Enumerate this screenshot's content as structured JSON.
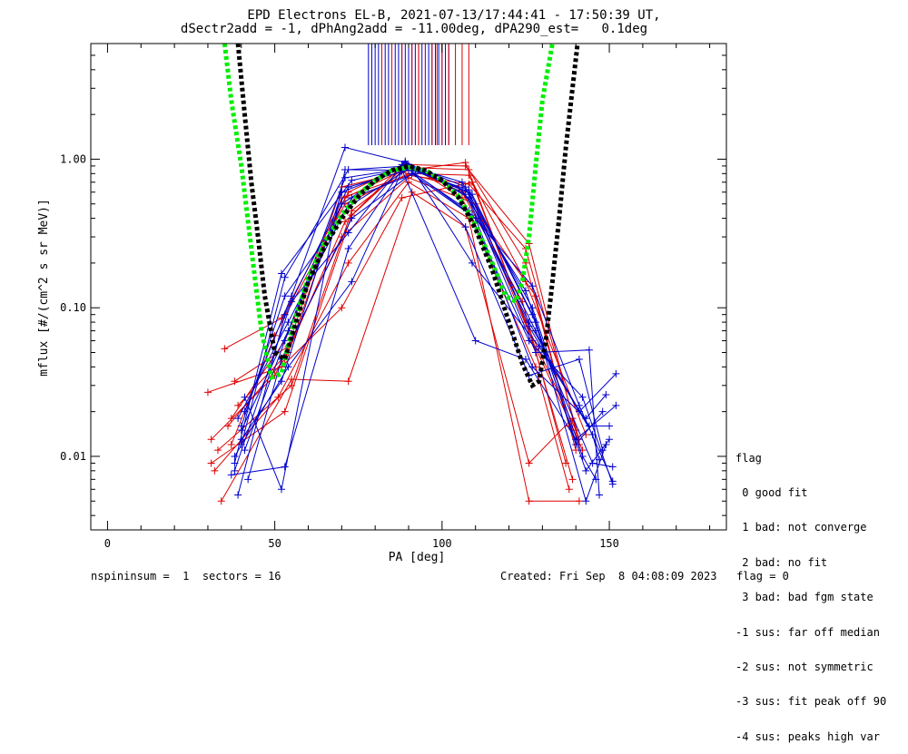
{
  "title_line1": "EPD Electrons EL-B, 2021-07-13/17:44:41 - 17:50:39 UT,",
  "title_line2": "dSectr2add = -1, dPhAng2add = -11.00deg, dPA290_est=   0.1deg",
  "chart_data": {
    "type": "line",
    "xlabel": "PA [deg]",
    "ylabel": "mflux [#/(cm^2 s sr MeV)]",
    "xlim": [
      -5,
      185
    ],
    "ylim": [
      0.0032,
      6.0
    ],
    "yscale": "log",
    "xticks": [
      0,
      50,
      100,
      150
    ],
    "xtick_labels": [
      "0",
      "50",
      "100",
      "150"
    ],
    "yticks": [
      0.01,
      0.1,
      1.0
    ],
    "ytick_labels": [
      "0.01",
      "0.10",
      "1.00"
    ],
    "grid": false,
    "series": [
      {
        "color": "#dd0000",
        "x": [
          37,
          53,
          71,
          90,
          108,
          125,
          140
        ],
        "y": [
          0.018,
          0.06,
          0.55,
          0.88,
          0.85,
          0.2,
          0.011
        ]
      },
      {
        "color": "#dd0000",
        "x": [
          35,
          52,
          72,
          89,
          107,
          126,
          141
        ],
        "y": [
          0.053,
          0.085,
          0.6,
          0.92,
          0.9,
          0.27,
          0.012
        ]
      },
      {
        "color": "#dd0000",
        "x": [
          31,
          50,
          70,
          90,
          110,
          127,
          139
        ],
        "y": [
          0.013,
          0.035,
          0.3,
          0.75,
          0.5,
          0.06,
          0.007
        ]
      },
      {
        "color": "#dd0000",
        "x": [
          33,
          55,
          73,
          88,
          105,
          128,
          138
        ],
        "y": [
          0.011,
          0.03,
          0.45,
          0.82,
          0.65,
          0.12,
          0.016
        ]
      },
      {
        "color": "#dd0000",
        "x": [
          38,
          54,
          70,
          91,
          107,
          125,
          140
        ],
        "y": [
          0.032,
          0.055,
          0.65,
          0.85,
          0.95,
          0.08,
          0.015
        ]
      },
      {
        "color": "#dd0000",
        "x": [
          32,
          51,
          72,
          90,
          108,
          126,
          141
        ],
        "y": [
          0.008,
          0.025,
          0.2,
          0.7,
          0.4,
          0.005,
          0.005
        ]
      },
      {
        "color": "#dd0000",
        "x": [
          36,
          53,
          71,
          89,
          106,
          124,
          137
        ],
        "y": [
          0.016,
          0.045,
          0.38,
          0.9,
          0.6,
          0.11,
          0.009
        ]
      },
      {
        "color": "#dd0000",
        "x": [
          30,
          52,
          70,
          88,
          109,
          127,
          142
        ],
        "y": [
          0.027,
          0.04,
          0.1,
          0.55,
          0.7,
          0.06,
          0.011
        ]
      },
      {
        "color": "#dd0000",
        "x": [
          34,
          55,
          72,
          91,
          107,
          126,
          139
        ],
        "y": [
          0.005,
          0.033,
          0.032,
          0.6,
          0.35,
          0.009,
          0.018
        ]
      },
      {
        "color": "#dd0000",
        "x": [
          37,
          50,
          71,
          90,
          108,
          125,
          143
        ],
        "y": [
          0.012,
          0.065,
          0.5,
          0.8,
          0.78,
          0.15,
          0.014
        ]
      },
      {
        "color": "#dd0000",
        "x": [
          31,
          53,
          73,
          89,
          106,
          128,
          138
        ],
        "y": [
          0.009,
          0.02,
          0.42,
          0.95,
          0.55,
          0.04,
          0.006
        ]
      },
      {
        "color": "#dd0000",
        "x": [
          39,
          54,
          70,
          90,
          108,
          125,
          141
        ],
        "y": [
          0.022,
          0.05,
          0.55,
          0.78,
          0.68,
          0.25,
          0.013
        ]
      },
      {
        "color": "#0000cc",
        "x": [
          40,
          53,
          72,
          90,
          108,
          126,
          141,
          152
        ],
        "y": [
          0.012,
          0.16,
          0.85,
          0.9,
          0.6,
          0.075,
          0.02,
          0.036
        ]
      },
      {
        "color": "#0000cc",
        "x": [
          38,
          52,
          73,
          91,
          109,
          127,
          143,
          150
        ],
        "y": [
          0.009,
          0.17,
          0.72,
          0.88,
          0.58,
          0.09,
          0.008,
          0.013
        ]
      },
      {
        "color": "#0000cc",
        "x": [
          41,
          55,
          71,
          89,
          107,
          128,
          144,
          147
        ],
        "y": [
          0.02,
          0.12,
          1.2,
          0.95,
          0.65,
          0.05,
          0.052,
          0.0055
        ]
      },
      {
        "color": "#0000cc",
        "x": [
          39,
          53,
          72,
          90,
          108,
          126,
          142,
          151
        ],
        "y": [
          0.0055,
          0.09,
          0.65,
          0.85,
          0.45,
          0.06,
          0.025,
          0.0065
        ]
      },
      {
        "color": "#0000cc",
        "x": [
          40,
          54,
          70,
          88,
          106,
          125,
          140,
          148
        ],
        "y": [
          0.015,
          0.07,
          0.5,
          0.92,
          0.62,
          0.13,
          0.012,
          0.02
        ]
      },
      {
        "color": "#0000cc",
        "x": [
          42,
          52,
          73,
          91,
          110,
          127,
          143,
          149
        ],
        "y": [
          0.007,
          0.045,
          0.4,
          0.8,
          0.4,
          0.04,
          0.018,
          0.026
        ]
      },
      {
        "color": "#0000cc",
        "x": [
          38,
          55,
          72,
          89,
          108,
          128,
          145,
          151
        ],
        "y": [
          0.008,
          0.11,
          0.32,
          0.97,
          0.55,
          0.07,
          0.009,
          0.0085
        ]
      },
      {
        "color": "#0000cc",
        "x": [
          41,
          53,
          71,
          90,
          107,
          126,
          141,
          148
        ],
        "y": [
          0.011,
          0.06,
          0.75,
          0.87,
          0.35,
          0.035,
          0.045,
          0.011
        ]
      },
      {
        "color": "#0000cc",
        "x": [
          39,
          54,
          73,
          92,
          109,
          129,
          144,
          150
        ],
        "y": [
          0.018,
          0.08,
          0.55,
          0.8,
          0.2,
          0.055,
          0.016,
          0.016
        ]
      },
      {
        "color": "#0000cc",
        "x": [
          40,
          52,
          70,
          90,
          106,
          127,
          142,
          146
        ],
        "y": [
          0.013,
          0.032,
          0.6,
          0.9,
          0.7,
          0.1,
          0.01,
          0.007
        ]
      },
      {
        "color": "#0000cc",
        "x": [
          37,
          53,
          72,
          88,
          110,
          125,
          140,
          152
        ],
        "y": [
          0.0075,
          0.0085,
          0.25,
          0.85,
          0.06,
          0.045,
          0.013,
          0.022
        ]
      },
      {
        "color": "#0000cc",
        "x": [
          41,
          52,
          71,
          91,
          108,
          128,
          143,
          149
        ],
        "y": [
          0.025,
          0.006,
          0.85,
          0.84,
          0.62,
          0.08,
          0.005,
          0.012
        ]
      },
      {
        "color": "#0000cc",
        "x": [
          38,
          54,
          73,
          89,
          107,
          126,
          145,
          147
        ],
        "y": [
          0.01,
          0.04,
          0.15,
          0.93,
          0.58,
          0.08,
          0.014,
          0.0095
        ]
      },
      {
        "color": "#0000cc",
        "x": [
          40,
          53,
          72,
          90,
          109,
          127,
          141,
          151
        ],
        "y": [
          0.016,
          0.12,
          0.48,
          0.86,
          0.42,
          0.14,
          0.022,
          0.0068
        ]
      }
    ],
    "model_curves": [
      {
        "color": "#00ee00",
        "style": "dashed",
        "x": [
          35,
          37,
          40,
          43,
          46,
          49,
          52,
          55,
          60,
          65,
          70,
          75,
          80,
          85,
          90,
          95,
          100,
          105,
          110,
          115,
          119,
          122,
          124,
          126,
          128,
          130,
          133
        ],
        "y": [
          6.0,
          2.5,
          0.9,
          0.25,
          0.07,
          0.034,
          0.036,
          0.07,
          0.16,
          0.28,
          0.42,
          0.58,
          0.72,
          0.84,
          0.88,
          0.84,
          0.72,
          0.56,
          0.36,
          0.2,
          0.12,
          0.11,
          0.15,
          0.3,
          0.9,
          2.5,
          6.0
        ]
      },
      {
        "color": "#000000",
        "style": "dashed",
        "x": [
          39,
          41,
          43,
          45,
          47,
          50,
          53,
          56,
          60,
          65,
          70,
          75,
          80,
          85,
          90,
          95,
          100,
          105,
          110,
          115,
          120,
          124,
          127,
          129,
          131,
          133,
          135,
          137,
          139,
          140.5
        ],
        "y": [
          6.0,
          2.0,
          0.7,
          0.3,
          0.12,
          0.05,
          0.045,
          0.075,
          0.15,
          0.26,
          0.4,
          0.56,
          0.72,
          0.84,
          0.9,
          0.84,
          0.72,
          0.55,
          0.34,
          0.18,
          0.08,
          0.042,
          0.03,
          0.032,
          0.06,
          0.15,
          0.4,
          1.2,
          3.0,
          6.0
        ]
      }
    ],
    "vertical_ticks": [
      {
        "color": "#0000cc",
        "x": [
          78,
          79,
          80,
          81,
          83,
          84,
          86,
          87,
          88,
          89,
          90,
          91,
          92,
          93,
          94,
          95,
          96,
          97,
          98,
          99,
          100,
          101,
          102
        ]
      },
      {
        "color": "#dd0000",
        "x": [
          82,
          85,
          88,
          91,
          93,
          95,
          97,
          98.5,
          100,
          102,
          104,
          106,
          108
        ]
      }
    ]
  },
  "legend": {
    "title": "flag",
    "items": [
      " 0 good fit",
      " 1 bad: not converge",
      " 2 bad: no fit",
      " 3 bad: bad fgm state",
      "-1 sus: far off median",
      "-2 sus: not symmetric",
      "-3 sus: fit peak off 90",
      "-4 sus: peaks high var"
    ]
  },
  "footer": {
    "left": "nspininsum =  1  sectors = 16",
    "right": "Created: Fri Sep  8 04:08:09 2023   flag = 0"
  }
}
